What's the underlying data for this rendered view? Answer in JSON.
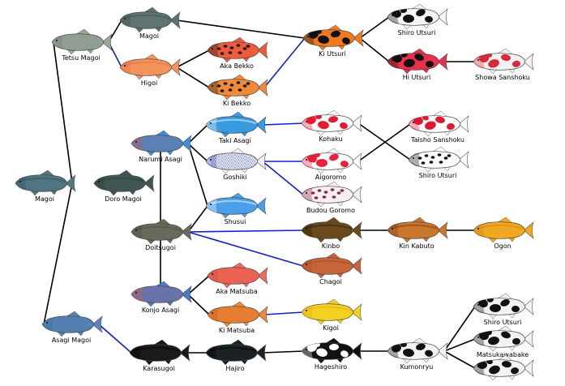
{
  "nodes": [
    {
      "id": "tetsu_magoi",
      "label": "Tetsu Magoi",
      "body": "#9aa69a",
      "pattern": "scale",
      "spot": "#6f7d72"
    },
    {
      "id": "magoi_top",
      "label": "Magoi",
      "body": "#5f7472",
      "pattern": "plain",
      "spot": "#3f504e"
    },
    {
      "id": "higoi",
      "label": "Higoi",
      "body": "#f2935a",
      "pattern": "plain",
      "spot": "#e0703a"
    },
    {
      "id": "aka_bekko",
      "label": "Aka Bekko",
      "body": "#ee5a3c",
      "pattern": "spots",
      "spot": "#1a1a1a"
    },
    {
      "id": "ki_bekko",
      "label": "Ki  Bekko",
      "body": "#f08a3a",
      "pattern": "spots",
      "spot": "#1a1a1a"
    },
    {
      "id": "ki_utsuri",
      "label": "Ki Utsuri",
      "body": "#f07a1e",
      "pattern": "patches",
      "spot": "#111111"
    },
    {
      "id": "shiro_utsuri_top",
      "label": "Shiro Utsuri",
      "body": "#f4f4f4",
      "pattern": "patches",
      "spot": "#111111"
    },
    {
      "id": "hi_utsuri",
      "label": "Hi Utsuri",
      "body": "#e8304a",
      "pattern": "patches",
      "spot": "#111111"
    },
    {
      "id": "showa_sanshoku",
      "label": "Showa Sanshoku",
      "body": "#f2f2f2",
      "pattern": "patches",
      "spot": "#d82a3a"
    },
    {
      "id": "magoi_left",
      "label": "Magoi",
      "body": "#4f7680",
      "pattern": "plain",
      "spot": "#345058"
    },
    {
      "id": "doro_magoi",
      "label": "Doro Magoi",
      "body": "#3f5654",
      "pattern": "plain",
      "spot": "#2b3c3a"
    },
    {
      "id": "narumi_asagi",
      "label": "Narumi Asagi",
      "body": "#3a8fd6",
      "pattern": "scale",
      "spot": "#d84a2a"
    },
    {
      "id": "taki_asagi",
      "label": "Taki Asagi",
      "body": "#3a9ae0",
      "pattern": "plain",
      "spot": "#ffffff"
    },
    {
      "id": "goshiki",
      "label": "Goshiki",
      "body": "#f0f0f6",
      "pattern": "scale",
      "spot": "#3a4ab0"
    },
    {
      "id": "shusui",
      "label": "Shusui",
      "body": "#4aa0e6",
      "pattern": "plain",
      "spot": "#ffffff"
    },
    {
      "id": "doitsugoi",
      "label": "Doitsugoi",
      "body": "#6a6a5c",
      "pattern": "plain",
      "spot": "#4a4a40"
    },
    {
      "id": "kohaku",
      "label": "Kohaku",
      "body": "#ffffff",
      "pattern": "patches",
      "spot": "#e8182e"
    },
    {
      "id": "aigoromo",
      "label": "Aigoromo",
      "body": "#ffffff",
      "pattern": "patches",
      "spot": "#e8203a"
    },
    {
      "id": "budou_goromo",
      "label": "Budou Goromo",
      "body": "#f6eef0",
      "pattern": "spots",
      "spot": "#8a2a3a"
    },
    {
      "id": "taisho_sanshoku",
      "label": "Taisho Sanshoku",
      "body": "#ffffff",
      "pattern": "patches",
      "spot": "#e01830"
    },
    {
      "id": "shiro_utsuri_mid",
      "label": "Shiro Utsuri",
      "body": "#ffffff",
      "pattern": "spots",
      "spot": "#111111"
    },
    {
      "id": "kinbo",
      "label": "Kinbo",
      "body": "#6a4a1a",
      "pattern": "plain",
      "spot": "#2a1c08"
    },
    {
      "id": "kin_kabuto",
      "label": "Kin Kabuto",
      "body": "#c8782a",
      "pattern": "plain",
      "spot": "#7a3a10"
    },
    {
      "id": "ogon",
      "label": "Ogon",
      "body": "#f0a820",
      "pattern": "plain",
      "spot": "#d08010"
    },
    {
      "id": "chagoi",
      "label": "Chagoi",
      "body": "#c8643a",
      "pattern": "plain",
      "spot": "#a04a28"
    },
    {
      "id": "konjo_asagi",
      "label": "Konjo Asagi",
      "body": "#4a7ac6",
      "pattern": "scale",
      "spot": "#e05a3a"
    },
    {
      "id": "aka_matsuba",
      "label": "Aka Matsuba",
      "body": "#f06a5a",
      "pattern": "scale",
      "spot": "#d04a3a"
    },
    {
      "id": "ki_matsuba",
      "label": "Ki Matsuba",
      "body": "#f0883a",
      "pattern": "scale",
      "spot": "#c05a1a"
    },
    {
      "id": "kigoi",
      "label": "Kigoi",
      "body": "#f4d020",
      "pattern": "plain",
      "spot": "#e0b010"
    },
    {
      "id": "asagi_magoi",
      "label": "Asagi Magoi",
      "body": "#5a86b6",
      "pattern": "scale",
      "spot": "#3a6a9a"
    },
    {
      "id": "karasugoi",
      "label": "Karasugoi",
      "body": "#1a1a1a",
      "pattern": "plain",
      "spot": "#000000"
    },
    {
      "id": "hajiro",
      "label": "Hajiro",
      "body": "#1a2226",
      "pattern": "plain",
      "spot": "#000000"
    },
    {
      "id": "hageshiro",
      "label": "Hageshiro",
      "body": "#111111",
      "pattern": "patches",
      "spot": "#ffffff"
    },
    {
      "id": "kumonryu",
      "label": "Kumonryu",
      "body": "#f2f2f2",
      "pattern": "patches",
      "spot": "#111111"
    },
    {
      "id": "shiro_utsuri_bot",
      "label": "Shiro Utsuri",
      "body": "#f2f2f2",
      "pattern": "patches",
      "spot": "#111111"
    },
    {
      "id": "matsukawabake",
      "label": "Matsukawabake",
      "body": "#f2f2f2",
      "pattern": "patches",
      "spot": "#111111"
    },
    {
      "id": "bottom_fish",
      "label": "",
      "body": "#f2f2f2",
      "pattern": "patches",
      "spot": "#111111"
    }
  ],
  "edges": [
    {
      "from": "tetsu_magoi",
      "to": "magoi_top",
      "color": "#000000"
    },
    {
      "from": "tetsu_magoi",
      "to": "higoi",
      "color": "#1020d0"
    },
    {
      "from": "magoi_top",
      "to": "ki_utsuri",
      "color": "#000000"
    },
    {
      "from": "higoi",
      "to": "aka_bekko",
      "color": "#000000"
    },
    {
      "from": "higoi",
      "to": "ki_bekko",
      "color": "#000000"
    },
    {
      "from": "ki_bekko",
      "to": "ki_utsuri",
      "color": "#1020d0"
    },
    {
      "from": "ki_utsuri",
      "to": "shiro_utsuri_top",
      "color": "#000000"
    },
    {
      "from": "ki_utsuri",
      "to": "hi_utsuri",
      "color": "#000000"
    },
    {
      "from": "hi_utsuri",
      "to": "showa_sanshoku",
      "color": "#000000"
    },
    {
      "from": "magoi_left",
      "to": "tetsu_magoi",
      "color": "#000000"
    },
    {
      "from": "magoi_left",
      "to": "asagi_magoi",
      "color": "#000000"
    },
    {
      "from": "narumi_asagi",
      "to": "taki_asagi",
      "color": "#000000"
    },
    {
      "from": "narumi_asagi",
      "to": "goshiki",
      "color": "#000000"
    },
    {
      "from": "narumi_asagi",
      "to": "shusui",
      "color": "#000000"
    },
    {
      "from": "narumi_asagi",
      "to": "konjo_asagi",
      "color": "#000000"
    },
    {
      "from": "doitsugoi",
      "to": "shusui",
      "color": "#000000"
    },
    {
      "from": "doitsugoi",
      "to": "kinbo",
      "color": "#1020d0"
    },
    {
      "from": "doitsugoi",
      "to": "chagoi",
      "color": "#1020d0"
    },
    {
      "from": "taki_asagi",
      "to": "kohaku",
      "color": "#1020d0"
    },
    {
      "from": "goshiki",
      "to": "aigoromo",
      "color": "#1020d0"
    },
    {
      "from": "goshiki",
      "to": "budou_goromo",
      "color": "#1020d0"
    },
    {
      "from": "kohaku",
      "to": "shiro_utsuri_mid",
      "color": "#000000"
    },
    {
      "from": "aigoromo",
      "to": "taisho_sanshoku",
      "color": "#000000"
    },
    {
      "from": "kinbo",
      "to": "kin_kabuto",
      "color": "#000000"
    },
    {
      "from": "kin_kabuto",
      "to": "ogon",
      "color": "#000000"
    },
    {
      "from": "konjo_asagi",
      "to": "aka_matsuba",
      "color": "#000000"
    },
    {
      "from": "konjo_asagi",
      "to": "ki_matsuba",
      "color": "#000000"
    },
    {
      "from": "ki_matsuba",
      "to": "kigoi",
      "color": "#1020d0"
    },
    {
      "from": "asagi_magoi",
      "to": "karasugoi",
      "color": "#1020d0"
    },
    {
      "from": "karasugoi",
      "to": "hajiro",
      "color": "#000000"
    },
    {
      "from": "hajiro",
      "to": "hageshiro",
      "color": "#000000"
    },
    {
      "from": "hageshiro",
      "to": "kumonryu",
      "color": "#000000"
    },
    {
      "from": "kumonryu",
      "to": "shiro_utsuri_bot",
      "color": "#000000"
    },
    {
      "from": "kumonryu",
      "to": "matsukawabake",
      "color": "#000000"
    },
    {
      "from": "kumonryu",
      "to": "bottom_fish",
      "color": "#000000"
    }
  ]
}
